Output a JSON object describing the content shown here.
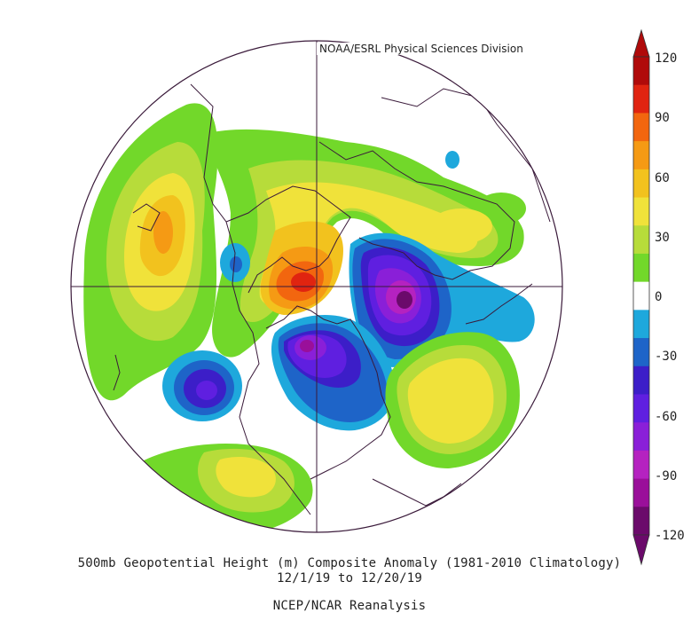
{
  "credit": "NOAA/ESRL Physical Sciences Division",
  "caption": {
    "line1": "500mb Geopotential Height (m) Composite Anomaly (1981-2010 Climatology)",
    "line2": "12/1/19  to 12/20/19",
    "line3": "NCEP/NCAR Reanalysis"
  },
  "colorbar": {
    "ticks": [
      "120",
      "90",
      "60",
      "30",
      "0",
      "-30",
      "-60",
      "-90",
      "-120"
    ],
    "levels": [
      -120,
      -105,
      -90,
      -75,
      -60,
      -45,
      -30,
      -15,
      15,
      30,
      45,
      60,
      75,
      90,
      105,
      120
    ],
    "colors": [
      "#6b0a6b",
      "#9a0f9a",
      "#b522c0",
      "#8a1fd8",
      "#5f1fe0",
      "#3c1ec8",
      "#1e64c8",
      "#1ea8dc",
      "#ffffff",
      "#72d82a",
      "#b7dc3a",
      "#f0e23a",
      "#f2c21e",
      "#f59a14",
      "#f2660f",
      "#e02410",
      "#b00a0a"
    ]
  },
  "colors": {
    "neg120": "#6b0a6b",
    "neg105": "#9a0f9a",
    "neg90": "#b522c0",
    "neg75": "#8a1fd8",
    "neg60": "#5f1fe0",
    "neg45": "#3c1ec8",
    "neg30": "#1e64c8",
    "neg15": "#1ea8dc",
    "zero": "#ffffff",
    "pos15": "#72d82a",
    "pos30": "#b7dc3a",
    "pos45": "#f0e23a",
    "pos60": "#f2c21e",
    "pos75": "#f59a14",
    "pos90": "#f2660f",
    "pos105": "#e02410",
    "pos120": "#b00a0a",
    "coast": "#3a1a3a"
  }
}
